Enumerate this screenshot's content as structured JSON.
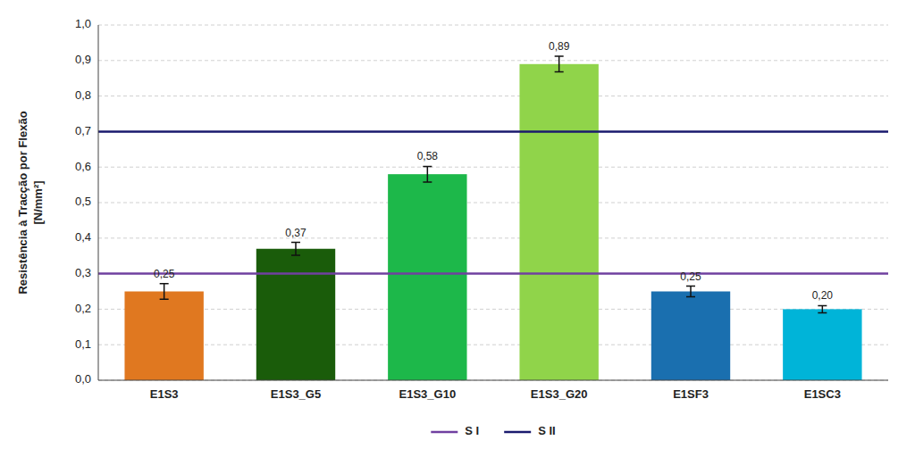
{
  "chart_data": {
    "type": "bar",
    "ylabel": "Resistência à Tracção por Flexão\n[N/mm²]",
    "categories": [
      "E1S3",
      "E1S3_G5",
      "E1S3_G10",
      "E1S3_G20",
      "E1SF3",
      "E1SC3"
    ],
    "values": [
      0.25,
      0.37,
      0.58,
      0.89,
      0.25,
      0.2
    ],
    "value_labels": [
      "0,25",
      "0,37",
      "0,58",
      "0,89",
      "0,25",
      "0,20"
    ],
    "errors": [
      0.022,
      0.018,
      0.022,
      0.022,
      0.015,
      0.01
    ],
    "colors": [
      "#E07820",
      "#1A5C0A",
      "#1DB84A",
      "#90D44A",
      "#1A6FAF",
      "#00B4D8"
    ],
    "reference_lines": [
      {
        "name": "S I",
        "value": 0.3,
        "color": "#7040A0"
      },
      {
        "name": "S II",
        "value": 0.7,
        "color": "#1A1A6E"
      }
    ],
    "ylim": [
      0.0,
      1.0
    ],
    "yticks": [
      {
        "value": 0.0,
        "label": "0,0"
      },
      {
        "value": 0.1,
        "label": "0,1"
      },
      {
        "value": 0.2,
        "label": "0,2"
      },
      {
        "value": 0.3,
        "label": "0,3"
      },
      {
        "value": 0.4,
        "label": "0,4"
      },
      {
        "value": 0.5,
        "label": "0,5"
      },
      {
        "value": 0.6,
        "label": "0,6"
      },
      {
        "value": 0.7,
        "label": "0,7"
      },
      {
        "value": 0.8,
        "label": "0,8"
      },
      {
        "value": 0.9,
        "label": "0,9"
      },
      {
        "value": 1.0,
        "label": "1,0"
      }
    ],
    "grid": true,
    "data_labels": true,
    "legend": "bottom"
  }
}
